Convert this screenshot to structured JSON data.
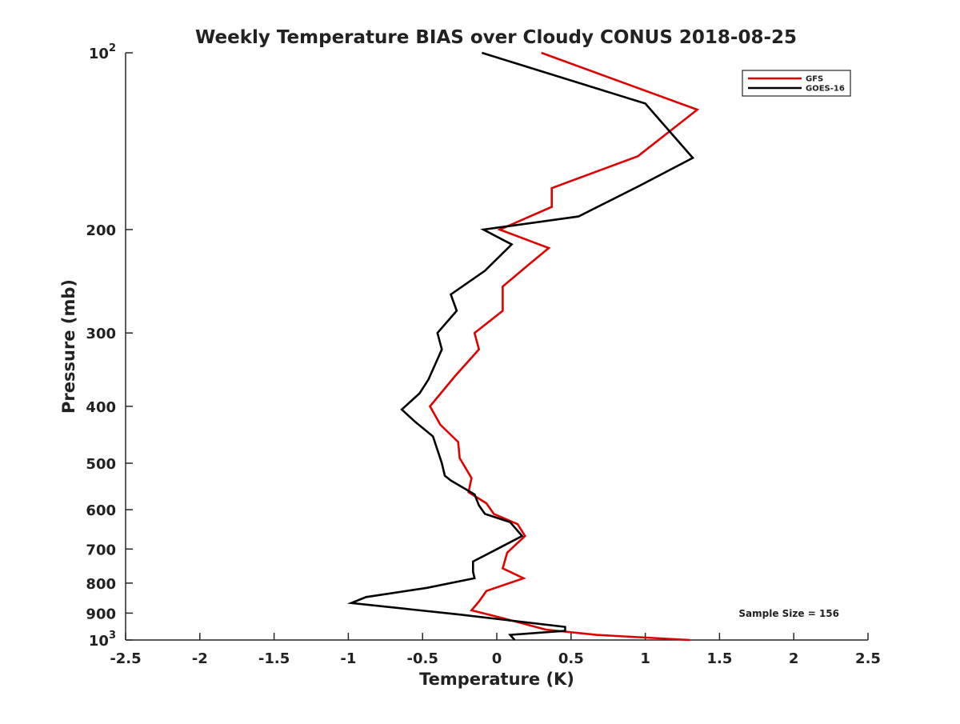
{
  "chart_data": {
    "type": "line",
    "title": "Weekly Temperature BIAS over Cloudy CONUS 2018-08-25",
    "xlabel": "Temperature (K)",
    "ylabel": "Pressure (mb)",
    "xlim": [
      -2.5,
      2.5
    ],
    "ylim": [
      100,
      1000
    ],
    "y_scale": "log",
    "y_reversed": true,
    "x_ticks": [
      {
        "value": -2.5,
        "label": "-2.5"
      },
      {
        "value": -2,
        "label": "-2"
      },
      {
        "value": -1.5,
        "label": "-1.5"
      },
      {
        "value": -1,
        "label": "-1"
      },
      {
        "value": -0.5,
        "label": "-0.5"
      },
      {
        "value": 0,
        "label": "0"
      },
      {
        "value": 0.5,
        "label": "0.5"
      },
      {
        "value": 1,
        "label": "1"
      },
      {
        "value": 1.5,
        "label": "1.5"
      },
      {
        "value": 2,
        "label": "2"
      },
      {
        "value": 2.5,
        "label": "2.5"
      }
    ],
    "y_ticks": [
      {
        "value": 100,
        "base": "10",
        "exp": "2"
      },
      {
        "value": 200,
        "label": "200"
      },
      {
        "value": 300,
        "label": "300"
      },
      {
        "value": 400,
        "label": "400"
      },
      {
        "value": 500,
        "label": "500"
      },
      {
        "value": 600,
        "label": "600"
      },
      {
        "value": 700,
        "label": "700"
      },
      {
        "value": 800,
        "label": "800"
      },
      {
        "value": 900,
        "label": "900"
      },
      {
        "value": 1000,
        "base": "10",
        "exp": "3"
      }
    ],
    "grid": false,
    "legend_position": "top-right",
    "series": [
      {
        "name": "GFS",
        "color": "#e00000",
        "points": [
          [
            0.3,
            100
          ],
          [
            1.35,
            125
          ],
          [
            0.95,
            150
          ],
          [
            0.37,
            170
          ],
          [
            0.37,
            183
          ],
          [
            0.02,
            200
          ],
          [
            0.35,
            215
          ],
          [
            0.21,
            230
          ],
          [
            0.04,
            250
          ],
          [
            0.04,
            275
          ],
          [
            -0.15,
            300
          ],
          [
            -0.12,
            320
          ],
          [
            -0.28,
            355
          ],
          [
            -0.45,
            400
          ],
          [
            -0.38,
            430
          ],
          [
            -0.26,
            460
          ],
          [
            -0.25,
            490
          ],
          [
            -0.17,
            530
          ],
          [
            -0.19,
            560
          ],
          [
            -0.07,
            585
          ],
          [
            -0.02,
            610
          ],
          [
            0.14,
            635
          ],
          [
            0.19,
            665
          ],
          [
            0.07,
            710
          ],
          [
            0.04,
            755
          ],
          [
            0.18,
            785
          ],
          [
            -0.07,
            825
          ],
          [
            -0.12,
            860
          ],
          [
            -0.17,
            890
          ],
          [
            0.02,
            915
          ],
          [
            0.33,
            960
          ],
          [
            0.67,
            980
          ],
          [
            1.3,
            1000
          ]
        ]
      },
      {
        "name": "GOES-16",
        "color": "#000000",
        "points": [
          [
            -0.1,
            100
          ],
          [
            1.0,
            122
          ],
          [
            1.32,
            151
          ],
          [
            0.97,
            168
          ],
          [
            0.55,
            190
          ],
          [
            -0.09,
            200
          ],
          [
            0.1,
            212
          ],
          [
            -0.08,
            235
          ],
          [
            -0.31,
            258
          ],
          [
            -0.27,
            275
          ],
          [
            -0.4,
            300
          ],
          [
            -0.37,
            320
          ],
          [
            -0.46,
            360
          ],
          [
            -0.52,
            380
          ],
          [
            -0.64,
            405
          ],
          [
            -0.55,
            425
          ],
          [
            -0.43,
            450
          ],
          [
            -0.37,
            500
          ],
          [
            -0.35,
            525
          ],
          [
            -0.31,
            535
          ],
          [
            -0.15,
            565
          ],
          [
            -0.12,
            590
          ],
          [
            -0.08,
            610
          ],
          [
            0.09,
            630
          ],
          [
            0.17,
            665
          ],
          [
            0.05,
            690
          ],
          [
            -0.16,
            735
          ],
          [
            -0.16,
            765
          ],
          [
            -0.15,
            785
          ],
          [
            -0.47,
            815
          ],
          [
            -0.88,
            845
          ],
          [
            -0.98,
            865
          ],
          [
            -0.25,
            905
          ],
          [
            0.46,
            950
          ],
          [
            0.46,
            965
          ],
          [
            0.09,
            980
          ],
          [
            0.12,
            1000
          ]
        ]
      }
    ],
    "annotations": [
      {
        "text": "Sample Size = 156",
        "position": "bottom-right"
      }
    ]
  }
}
